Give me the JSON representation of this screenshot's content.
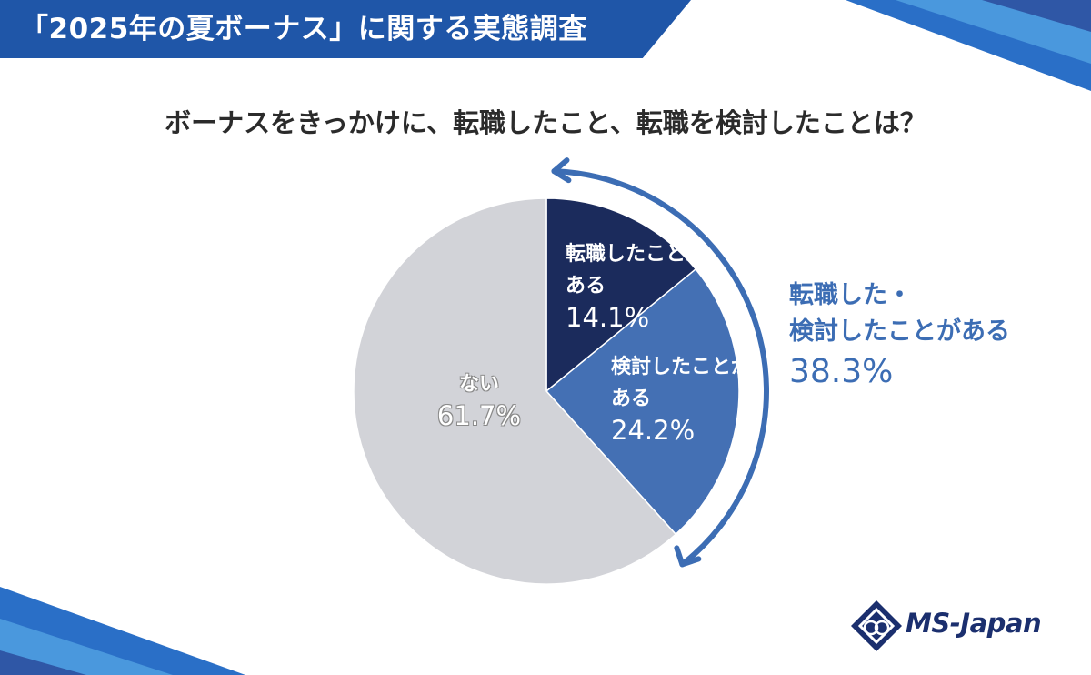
{
  "header": {
    "title": "「2025年の夏ボーナス」に関する実態調査"
  },
  "question": "ボーナスをきっかけに、転職したこと、転職を検討したことは？",
  "chart_data": {
    "type": "pie",
    "title": "ボーナスをきっかけに、転職したこと、転職を検討したことは？",
    "slices": [
      {
        "label": "転職したことがある",
        "value": 14.1,
        "display": "14.1%",
        "color": "#1b2b5c"
      },
      {
        "label": "検討したことがある",
        "value": 24.2,
        "display": "24.2%",
        "color": "#4470b4"
      },
      {
        "label": "ない",
        "value": 61.7,
        "display": "61.7%",
        "color": "#d2d3d8"
      }
    ],
    "callout": {
      "line1": "転職した・",
      "line2": "検討したことがある",
      "value": "38.3%",
      "color": "#3c6db4"
    }
  },
  "labels": {
    "tenshoku_1": "転職したことが",
    "tenshoku_2": "ある",
    "tenshoku_pct": "14.1%",
    "kentou_1": "検討したことが",
    "kentou_2": "ある",
    "kentou_pct": "24.2%",
    "none_1": "ない",
    "none_pct": "61.7%"
  },
  "logo": {
    "text": "MS-Japan",
    "color": "#1b2f6e"
  }
}
